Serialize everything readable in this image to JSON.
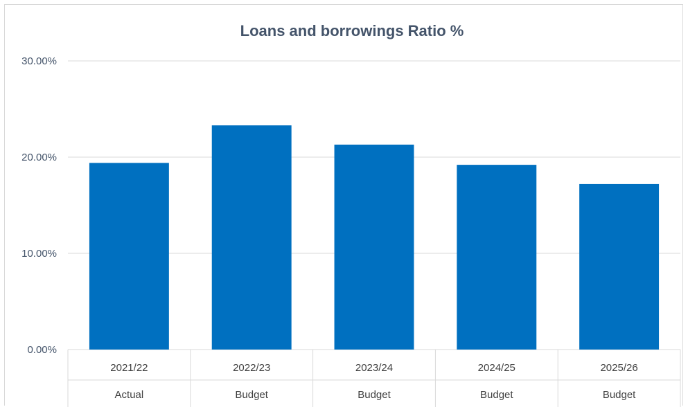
{
  "chart_data": {
    "type": "bar",
    "title": "Loans and borrowings Ratio %",
    "xlabel": "",
    "ylabel": "",
    "ylim": [
      0,
      30
    ],
    "yticks": [
      "0.00%",
      "10.00%",
      "20.00%",
      "30.00%"
    ],
    "ytick_values": [
      0,
      10,
      20,
      30
    ],
    "grid": true,
    "legend": "none",
    "categories": [
      "2021/22",
      "2022/23",
      "2023/24",
      "2024/25",
      "2025/26"
    ],
    "category_sublabels": [
      "Actual",
      "Budget",
      "Budget",
      "Budget",
      "Budget"
    ],
    "values": [
      19.4,
      23.3,
      21.3,
      19.2,
      17.2
    ],
    "bar_color": "#0070c0",
    "grid_color": "#d9d9d9"
  }
}
